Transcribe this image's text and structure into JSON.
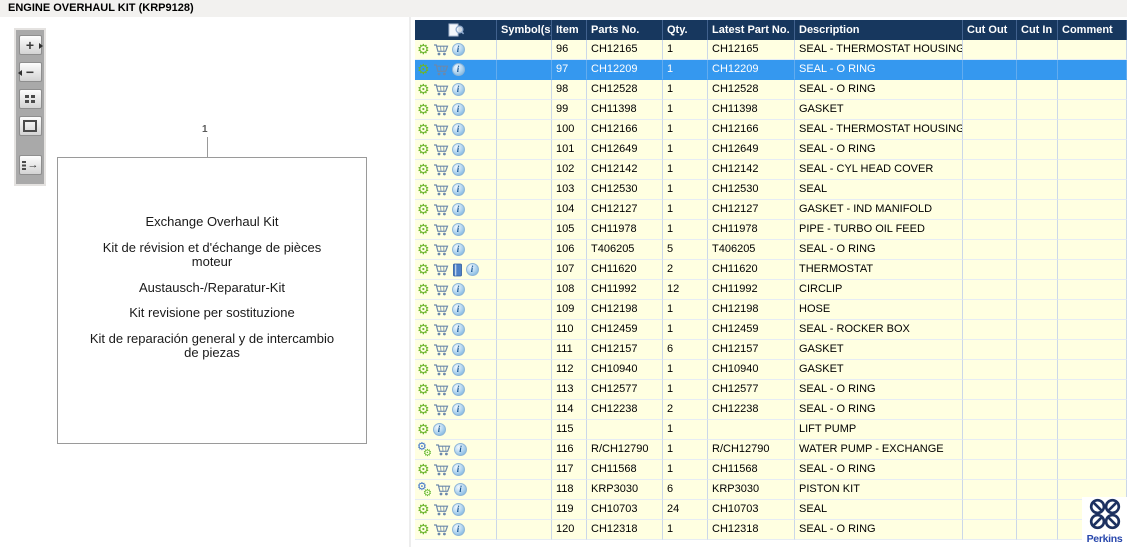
{
  "title": "ENGINE OVERHAUL KIT (KRP9128)",
  "toolbar": {
    "buttons": [
      {
        "name": "zoom-in",
        "glyph": "+"
      },
      {
        "name": "zoom-out",
        "glyph": "−"
      },
      {
        "name": "tile-view",
        "glyph": ""
      },
      {
        "name": "single-view",
        "glyph": ""
      },
      {
        "name": "toggle-panel",
        "glyph": ""
      }
    ]
  },
  "diagram": {
    "callout": "1",
    "paragraphs": [
      [
        "Exchange Overhaul Kit"
      ],
      [
        "Kit de révision et d'échange de pièces",
        "moteur"
      ],
      [
        "Austausch-/Reparatur-Kit"
      ],
      [
        "Kit revisione per sostituzione"
      ],
      [
        "Kit de reparación general y de intercambio",
        "de piezas"
      ]
    ]
  },
  "table": {
    "columns": [
      "",
      "Symbol(s)",
      "Item",
      "Parts No.",
      "Qty.",
      "Latest Part No.",
      "Description",
      "Cut Out",
      "Cut In",
      "Comment"
    ],
    "header_icon": "search-document-icon",
    "rows": [
      {
        "icons": [
          "gear",
          "cart",
          "info"
        ],
        "symbols": "",
        "item": "96",
        "parts_no": "CH12165",
        "qty": "1",
        "latest_part_no": "CH12165",
        "description": "SEAL - THERMOSTAT HOUSING",
        "cut_out": "",
        "cut_in": "",
        "comment": "",
        "selected": false
      },
      {
        "icons": [
          "gear",
          "cart",
          "info"
        ],
        "symbols": "",
        "item": "97",
        "parts_no": "CH12209",
        "qty": "1",
        "latest_part_no": "CH12209",
        "description": "SEAL - O RING",
        "cut_out": "",
        "cut_in": "",
        "comment": "",
        "selected": true
      },
      {
        "icons": [
          "gear",
          "cart",
          "info"
        ],
        "symbols": "",
        "item": "98",
        "parts_no": "CH12528",
        "qty": "1",
        "latest_part_no": "CH12528",
        "description": "SEAL - O RING",
        "cut_out": "",
        "cut_in": "",
        "comment": "",
        "selected": false
      },
      {
        "icons": [
          "gear",
          "cart",
          "info"
        ],
        "symbols": "",
        "item": "99",
        "parts_no": "CH11398",
        "qty": "1",
        "latest_part_no": "CH11398",
        "description": "GASKET",
        "cut_out": "",
        "cut_in": "",
        "comment": "",
        "selected": false
      },
      {
        "icons": [
          "gear",
          "cart",
          "info"
        ],
        "symbols": "",
        "item": "100",
        "parts_no": "CH12166",
        "qty": "1",
        "latest_part_no": "CH12166",
        "description": "SEAL - THERMOSTAT HOUSING",
        "cut_out": "",
        "cut_in": "",
        "comment": "",
        "selected": false
      },
      {
        "icons": [
          "gear",
          "cart",
          "info"
        ],
        "symbols": "",
        "item": "101",
        "parts_no": "CH12649",
        "qty": "1",
        "latest_part_no": "CH12649",
        "description": "SEAL - O RING",
        "cut_out": "",
        "cut_in": "",
        "comment": "",
        "selected": false
      },
      {
        "icons": [
          "gear",
          "cart",
          "info"
        ],
        "symbols": "",
        "item": "102",
        "parts_no": "CH12142",
        "qty": "1",
        "latest_part_no": "CH12142",
        "description": "SEAL - CYL HEAD COVER",
        "cut_out": "",
        "cut_in": "",
        "comment": "",
        "selected": false
      },
      {
        "icons": [
          "gear",
          "cart",
          "info"
        ],
        "symbols": "",
        "item": "103",
        "parts_no": "CH12530",
        "qty": "1",
        "latest_part_no": "CH12530",
        "description": "SEAL",
        "cut_out": "",
        "cut_in": "",
        "comment": "",
        "selected": false
      },
      {
        "icons": [
          "gear",
          "cart",
          "info"
        ],
        "symbols": "",
        "item": "104",
        "parts_no": "CH12127",
        "qty": "1",
        "latest_part_no": "CH12127",
        "description": "GASKET - IND MANIFOLD",
        "cut_out": "",
        "cut_in": "",
        "comment": "",
        "selected": false
      },
      {
        "icons": [
          "gear",
          "cart",
          "info"
        ],
        "symbols": "",
        "item": "105",
        "parts_no": "CH11978",
        "qty": "1",
        "latest_part_no": "CH11978",
        "description": "PIPE - TURBO OIL FEED",
        "cut_out": "",
        "cut_in": "",
        "comment": "",
        "selected": false
      },
      {
        "icons": [
          "gear",
          "cart",
          "info"
        ],
        "symbols": "",
        "item": "106",
        "parts_no": "T406205",
        "qty": "5",
        "latest_part_no": "T406205",
        "description": "SEAL - O RING",
        "cut_out": "",
        "cut_in": "",
        "comment": "",
        "selected": false
      },
      {
        "icons": [
          "gear",
          "cart",
          "book",
          "info"
        ],
        "symbols": "",
        "item": "107",
        "parts_no": "CH11620",
        "qty": "2",
        "latest_part_no": "CH11620",
        "description": "THERMOSTAT",
        "cut_out": "",
        "cut_in": "",
        "comment": "",
        "selected": false
      },
      {
        "icons": [
          "gear",
          "cart",
          "info"
        ],
        "symbols": "",
        "item": "108",
        "parts_no": "CH11992",
        "qty": "12",
        "latest_part_no": "CH11992",
        "description": "CIRCLIP",
        "cut_out": "",
        "cut_in": "",
        "comment": "",
        "selected": false
      },
      {
        "icons": [
          "gear",
          "cart",
          "info"
        ],
        "symbols": "",
        "item": "109",
        "parts_no": "CH12198",
        "qty": "1",
        "latest_part_no": "CH12198",
        "description": "HOSE",
        "cut_out": "",
        "cut_in": "",
        "comment": "",
        "selected": false
      },
      {
        "icons": [
          "gear",
          "cart",
          "info"
        ],
        "symbols": "",
        "item": "110",
        "parts_no": "CH12459",
        "qty": "1",
        "latest_part_no": "CH12459",
        "description": "SEAL - ROCKER BOX",
        "cut_out": "",
        "cut_in": "",
        "comment": "",
        "selected": false
      },
      {
        "icons": [
          "gear",
          "cart",
          "info"
        ],
        "symbols": "",
        "item": "111",
        "parts_no": "CH12157",
        "qty": "6",
        "latest_part_no": "CH12157",
        "description": "GASKET",
        "cut_out": "",
        "cut_in": "",
        "comment": "",
        "selected": false
      },
      {
        "icons": [
          "gear",
          "cart",
          "info"
        ],
        "symbols": "",
        "item": "112",
        "parts_no": "CH10940",
        "qty": "1",
        "latest_part_no": "CH10940",
        "description": "GASKET",
        "cut_out": "",
        "cut_in": "",
        "comment": "",
        "selected": false
      },
      {
        "icons": [
          "gear",
          "cart",
          "info"
        ],
        "symbols": "",
        "item": "113",
        "parts_no": "CH12577",
        "qty": "1",
        "latest_part_no": "CH12577",
        "description": "SEAL - O RING",
        "cut_out": "",
        "cut_in": "",
        "comment": "",
        "selected": false
      },
      {
        "icons": [
          "gear",
          "cart",
          "info"
        ],
        "symbols": "",
        "item": "114",
        "parts_no": "CH12238",
        "qty": "2",
        "latest_part_no": "CH12238",
        "description": "SEAL - O RING",
        "cut_out": "",
        "cut_in": "",
        "comment": "",
        "selected": false
      },
      {
        "icons": [
          "gear",
          "info"
        ],
        "symbols": "",
        "item": "115",
        "parts_no": "",
        "qty": "1",
        "latest_part_no": "",
        "description": "LIFT PUMP",
        "cut_out": "",
        "cut_in": "",
        "comment": "",
        "selected": false
      },
      {
        "icons": [
          "gears",
          "cart",
          "info"
        ],
        "symbols": "",
        "item": "116",
        "parts_no": "R/CH12790",
        "qty": "1",
        "latest_part_no": "R/CH12790",
        "description": "WATER PUMP - EXCHANGE",
        "cut_out": "",
        "cut_in": "",
        "comment": "",
        "selected": false
      },
      {
        "icons": [
          "gear",
          "cart",
          "info"
        ],
        "symbols": "",
        "item": "117",
        "parts_no": "CH11568",
        "qty": "1",
        "latest_part_no": "CH11568",
        "description": "SEAL - O RING",
        "cut_out": "",
        "cut_in": "",
        "comment": "",
        "selected": false
      },
      {
        "icons": [
          "gears",
          "cart",
          "info"
        ],
        "symbols": "",
        "item": "118",
        "parts_no": "KRP3030",
        "qty": "6",
        "latest_part_no": "KRP3030",
        "description": "PISTON KIT",
        "cut_out": "",
        "cut_in": "",
        "comment": "",
        "selected": false
      },
      {
        "icons": [
          "gear",
          "cart",
          "info"
        ],
        "symbols": "",
        "item": "119",
        "parts_no": "CH10703",
        "qty": "24",
        "latest_part_no": "CH10703",
        "description": "SEAL",
        "cut_out": "",
        "cut_in": "",
        "comment": "",
        "selected": false
      },
      {
        "icons": [
          "gear",
          "cart",
          "info"
        ],
        "symbols": "",
        "item": "120",
        "parts_no": "CH12318",
        "qty": "1",
        "latest_part_no": "CH12318",
        "description": "SEAL - O RING",
        "cut_out": "",
        "cut_in": "",
        "comment": "",
        "selected": false
      }
    ]
  },
  "brand": {
    "name": "Perkins"
  },
  "icon_legend": {
    "gear": "part-options-gear-icon",
    "gears": "exchange-part-gears-icon",
    "cart": "add-to-cart-icon",
    "book": "catalog-book-icon",
    "info": "part-info-icon"
  },
  "colors": {
    "header_bg": "#17375E",
    "row_bg": "#FFFFE1",
    "selected_row_bg": "#3598EF",
    "grid_line": "#CBD7E8",
    "gear_green": "#6CB52C",
    "gear_blue": "#3E74C8",
    "cart_blue": "#6C89AB",
    "perkins_navy": "#1D3160",
    "perkins_blue": "#2847AC"
  }
}
